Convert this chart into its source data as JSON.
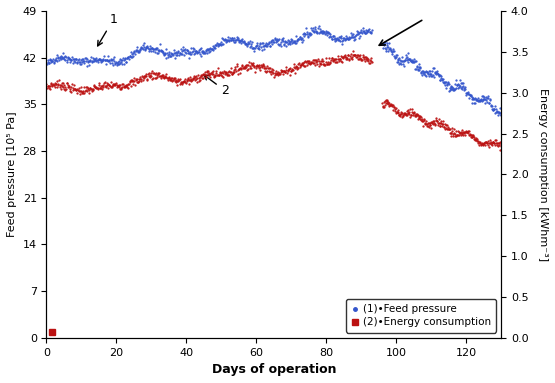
{
  "title": "",
  "xlabel": "Days of operation",
  "ylabel_left": "Feed pressure [10⁵ Pa]",
  "ylabel_right": "Energy consumption [kWhm⁻³]",
  "xlim": [
    0,
    130
  ],
  "ylim_left": [
    0,
    49
  ],
  "ylim_right": [
    0,
    4
  ],
  "yticks_left": [
    0,
    7,
    14,
    21,
    28,
    35,
    42,
    49
  ],
  "yticks_right": [
    0,
    0.5,
    1,
    1.5,
    2,
    2.5,
    3,
    3.5,
    4
  ],
  "xticks": [
    0,
    20,
    40,
    60,
    80,
    100,
    120
  ],
  "color_blue": "#3355cc",
  "color_red": "#bb1111",
  "legend_label1": "(1)•Feed pressure",
  "legend_label2": "(2)•Energy consumption",
  "label1_text": "1",
  "label2_text": "2",
  "figsize": [
    5.55,
    3.83
  ],
  "dpi": 100,
  "blue_phase1_start": 41.0,
  "blue_phase1_end": 46.0,
  "blue_phase2_start": 43.5,
  "blue_phase2_end": 34.0,
  "red_phase1_start": 37.0,
  "red_phase1_end": 42.0,
  "red_phase2_start": 35.0,
  "red_phase2_end": 28.5,
  "phase_split_day": 93,
  "phase2_resume_day": 96
}
